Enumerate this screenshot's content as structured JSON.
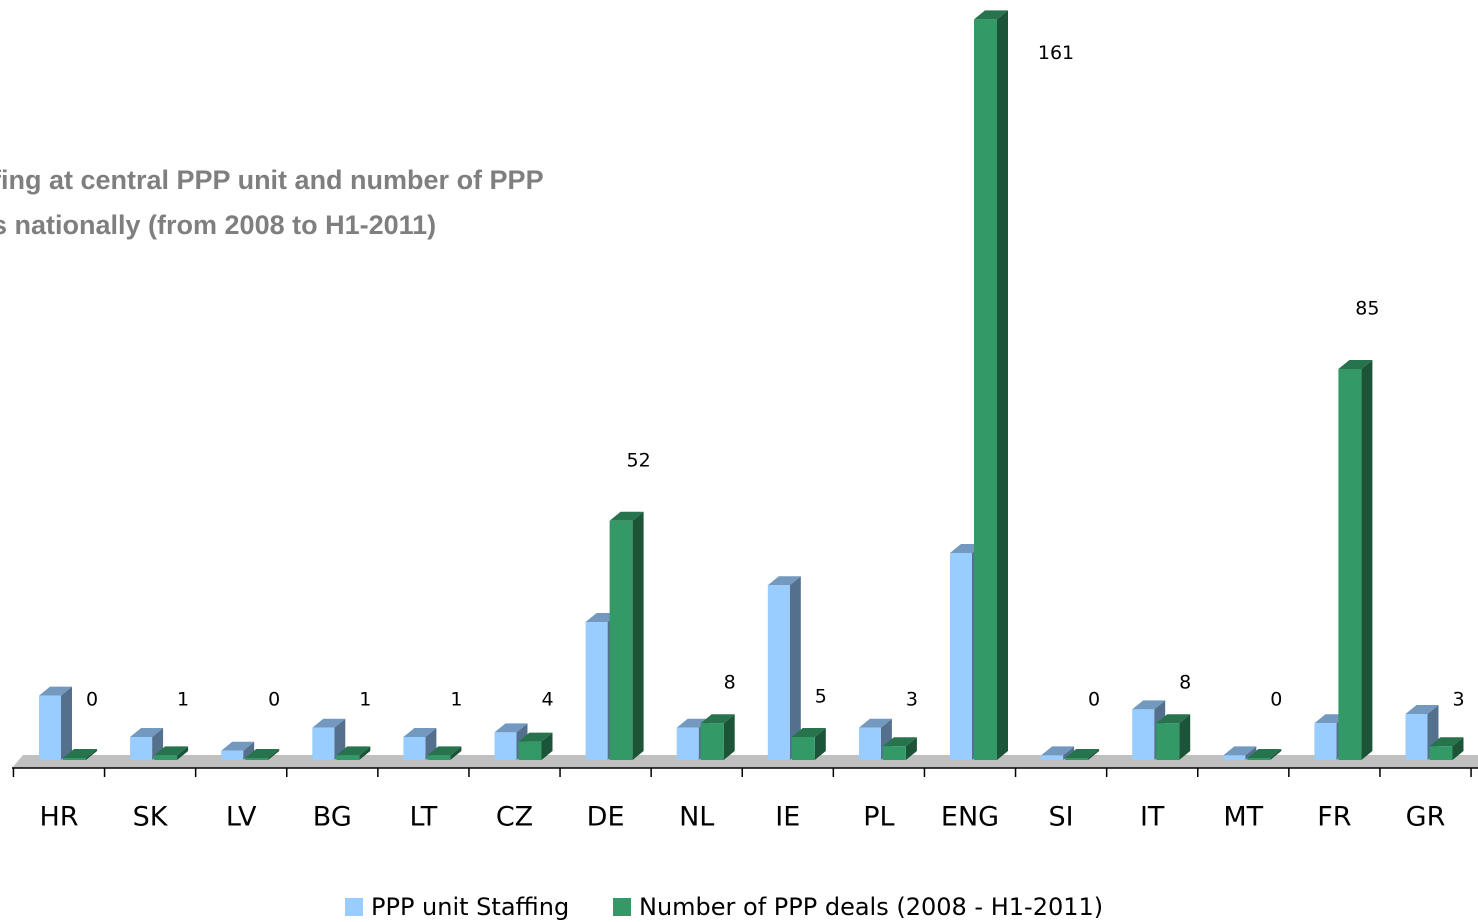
{
  "chart_data": {
    "type": "bar3d",
    "title_lines": [
      "fing at central PPP unit and number of PPP",
      "s nationally (from 2008 to H1-2011)"
    ],
    "categories": [
      "HR",
      "SK",
      "LV",
      "BG",
      "LT",
      "CZ",
      "DE",
      "NL",
      "IE",
      "PL",
      "ENG",
      "SI",
      "IT",
      "MT",
      "FR",
      "GR"
    ],
    "series": [
      {
        "name": "PPP unit Staffing",
        "color": "#99ccff",
        "values": [
          14,
          5,
          2,
          7,
          5,
          6,
          30,
          7,
          38,
          7,
          45,
          1,
          11,
          1,
          8,
          10
        ]
      },
      {
        "name": "Number of PPP deals (2008 - H1-2011)",
        "color": "#339966",
        "values": [
          0,
          1,
          0,
          1,
          1,
          4,
          52,
          8,
          5,
          3,
          161,
          0,
          8,
          0,
          85,
          3
        ]
      }
    ],
    "legend": "bottom"
  }
}
